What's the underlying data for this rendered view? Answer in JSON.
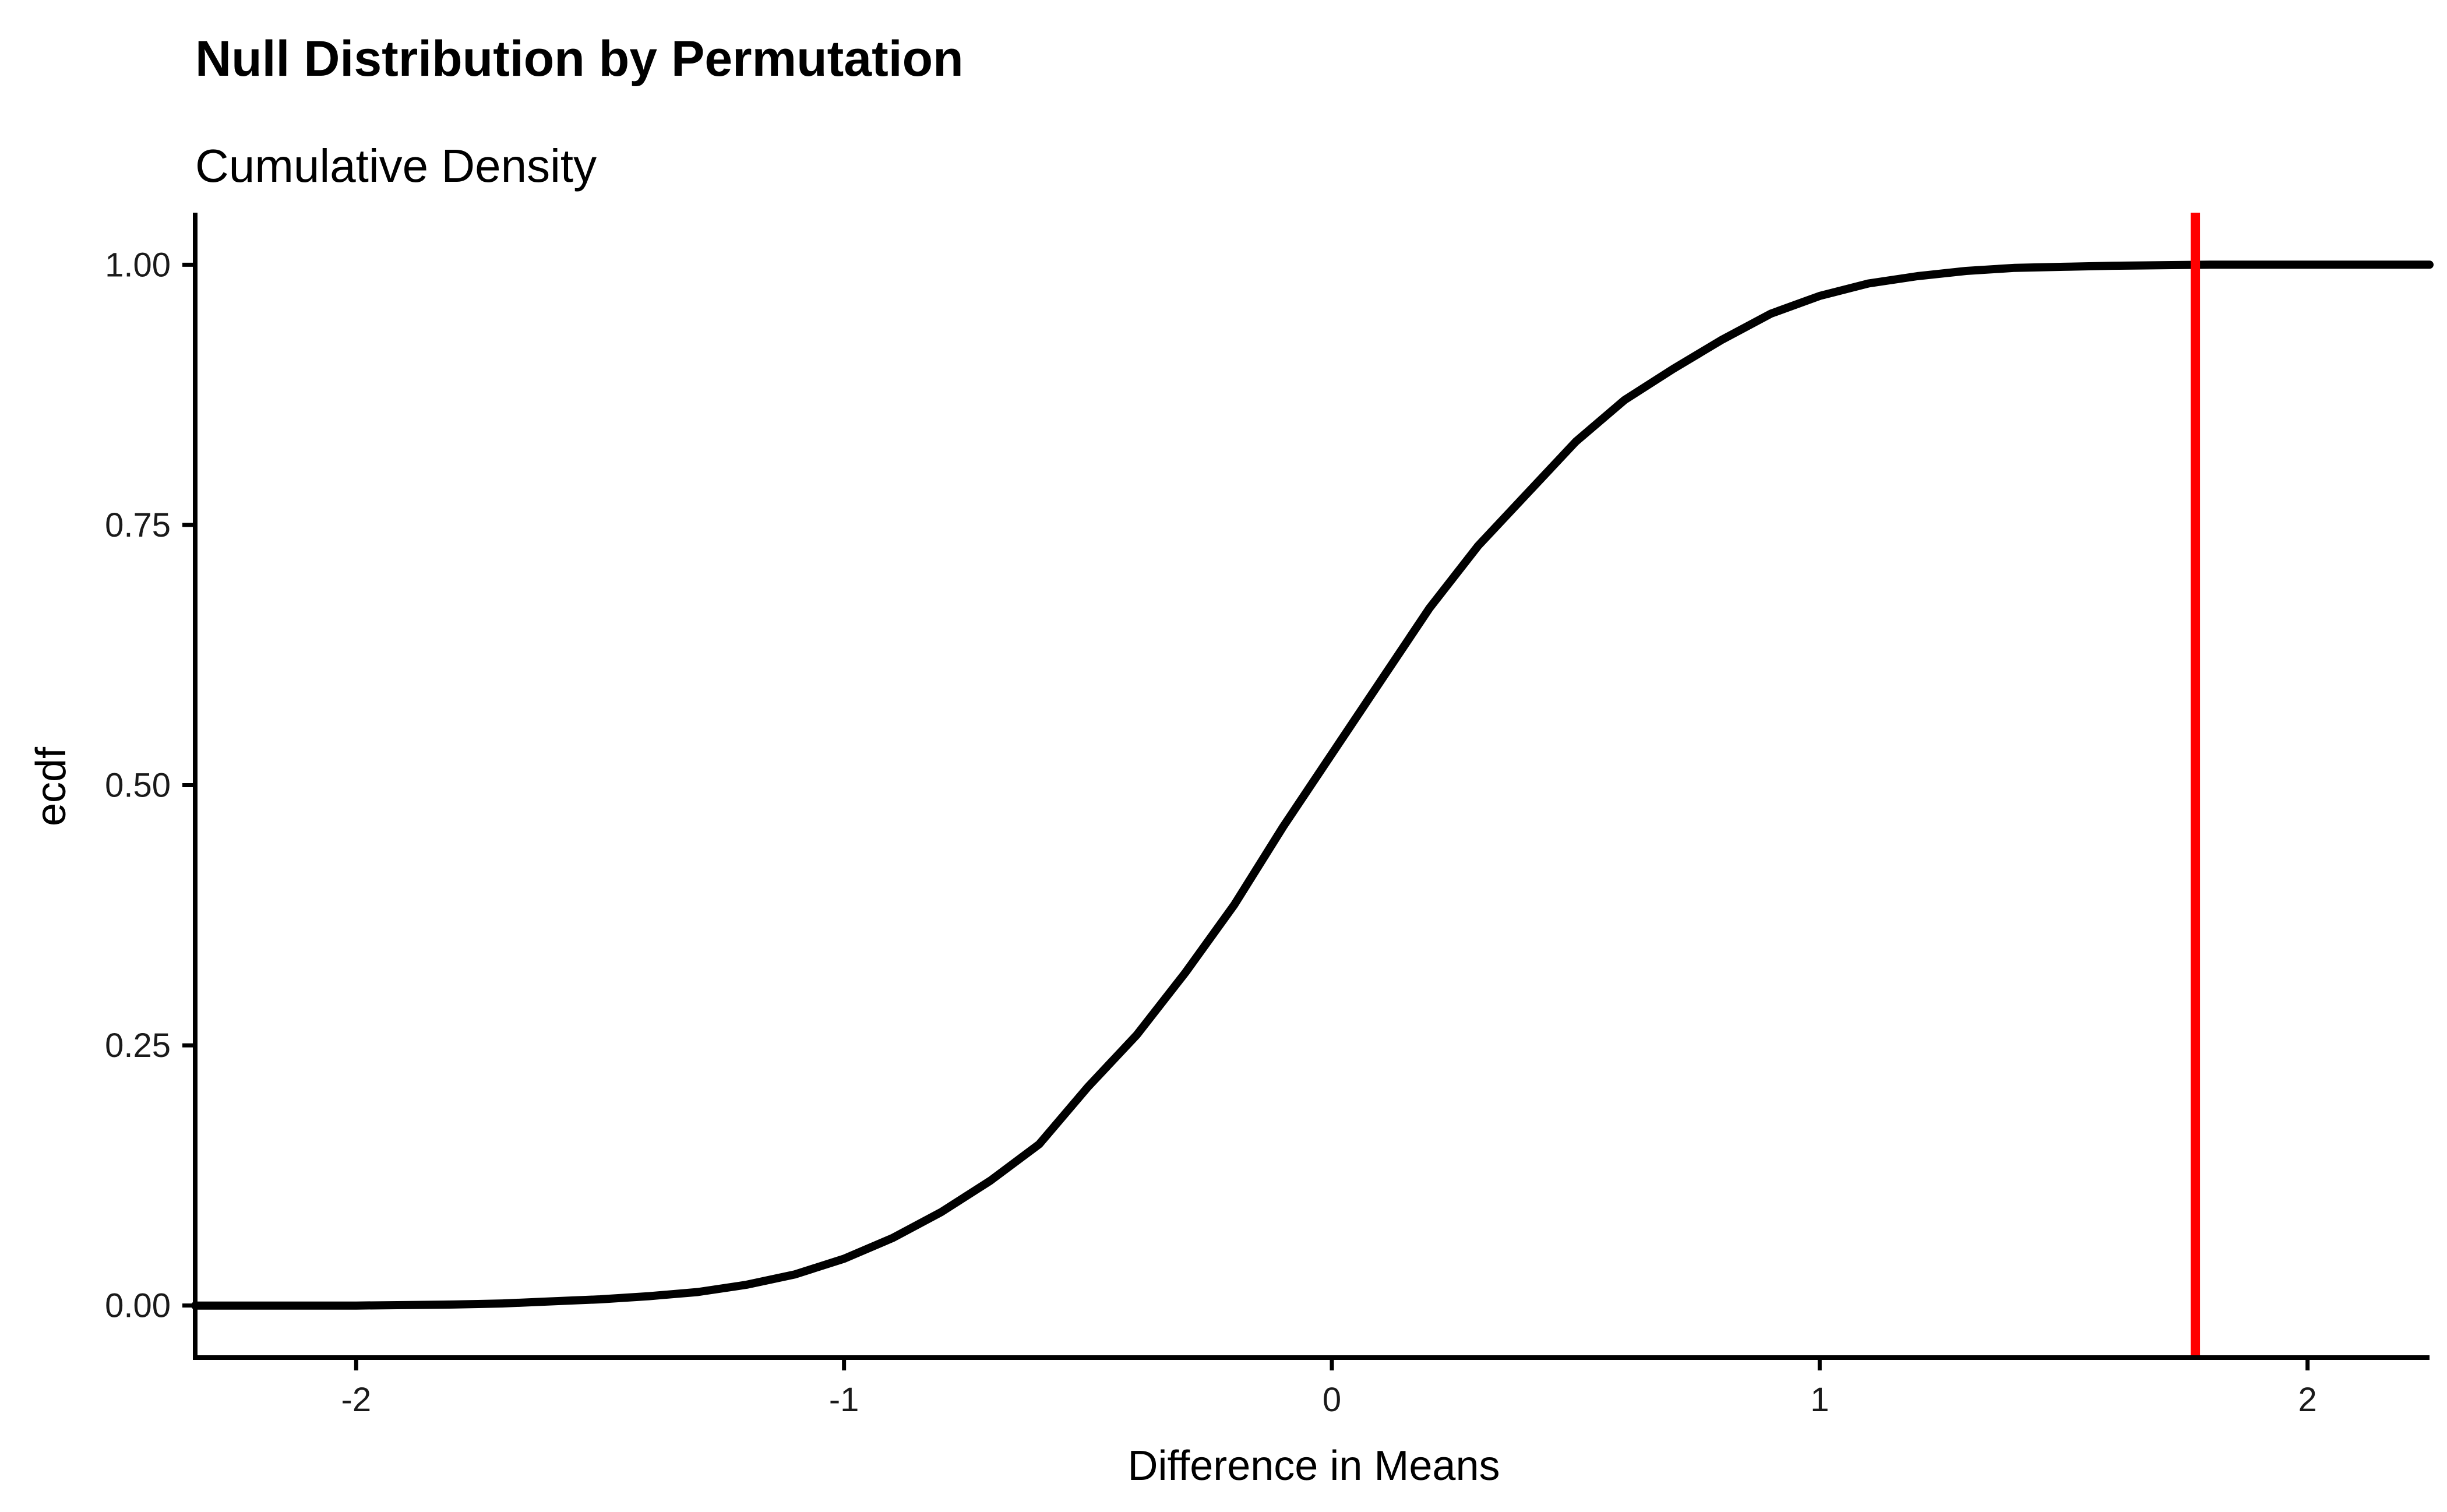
{
  "chart_data": {
    "type": "line",
    "title": "Null Distribution by Permutation",
    "subtitle": "Cumulative Density",
    "xlabel": "Difference in Means",
    "ylabel": "ecdf",
    "xlim": [
      -2.33,
      2.25
    ],
    "ylim": [
      -0.05,
      1.05
    ],
    "x_ticks": [
      {
        "value": -2,
        "label": "-2"
      },
      {
        "value": -1,
        "label": "-1"
      },
      {
        "value": 0,
        "label": "0"
      },
      {
        "value": 1,
        "label": "1"
      },
      {
        "value": 2,
        "label": "2"
      }
    ],
    "y_ticks": [
      {
        "value": 0,
        "label": "0.00"
      },
      {
        "value": 0.25,
        "label": "0.25"
      },
      {
        "value": 0.5,
        "label": "0.50"
      },
      {
        "value": 0.75,
        "label": "0.75"
      },
      {
        "value": 1,
        "label": "1.00"
      }
    ],
    "grid": false,
    "legend": "none",
    "series": [
      {
        "color": "#000000",
        "x": [
          -2.33,
          -2.0,
          -1.8,
          -1.7,
          -1.6,
          -1.5,
          -1.4,
          -1.3,
          -1.2,
          -1.1,
          -1.0,
          -0.9,
          -0.8,
          -0.7,
          -0.6,
          -0.5,
          -0.4,
          -0.3,
          -0.2,
          -0.1,
          0.0,
          0.1,
          0.2,
          0.3,
          0.4,
          0.5,
          0.6,
          0.7,
          0.8,
          0.9,
          1.0,
          1.1,
          1.2,
          1.3,
          1.4,
          1.5,
          1.6,
          1.8,
          2.0,
          2.25
        ],
        "y": [
          0.0,
          0.0,
          0.001,
          0.002,
          0.004,
          0.006,
          0.009,
          0.013,
          0.02,
          0.03,
          0.045,
          0.065,
          0.09,
          0.12,
          0.155,
          0.21,
          0.26,
          0.32,
          0.385,
          0.46,
          0.53,
          0.6,
          0.67,
          0.73,
          0.78,
          0.83,
          0.87,
          0.9,
          0.928,
          0.953,
          0.97,
          0.982,
          0.989,
          0.994,
          0.997,
          0.998,
          0.999,
          1.0,
          1.0,
          1.0
        ]
      }
    ],
    "vline": {
      "x": 1.77,
      "color": "#ff0000"
    }
  }
}
